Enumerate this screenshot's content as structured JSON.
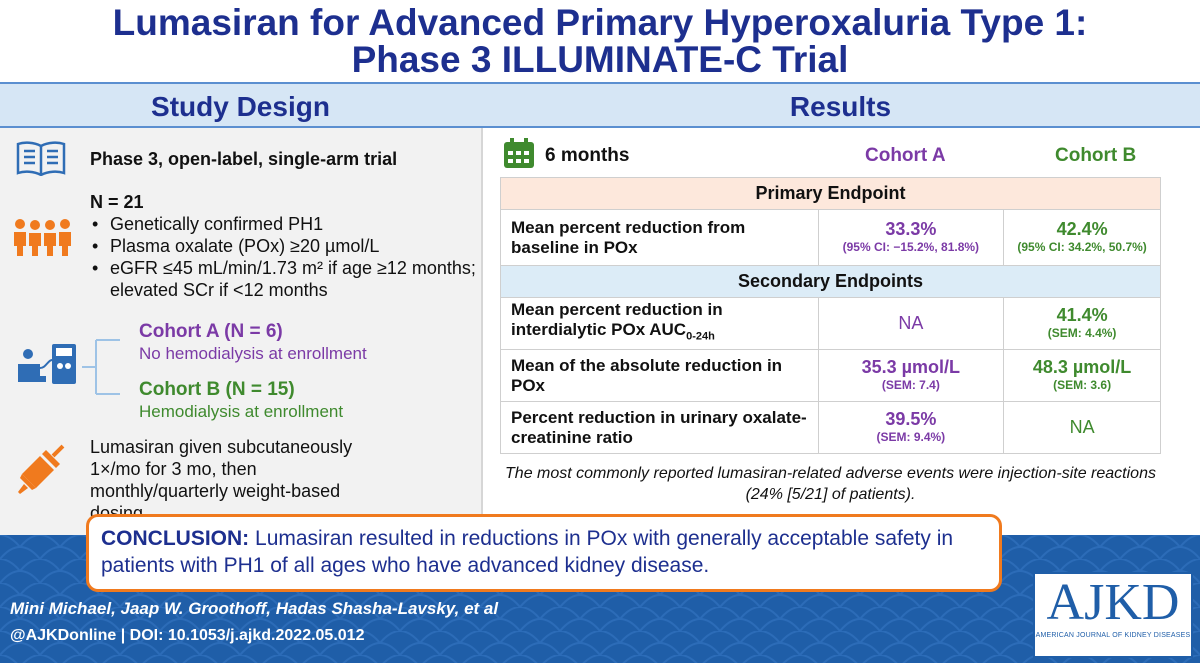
{
  "title": {
    "line1": "Lumasiran for Advanced Primary Hyperoxaluria Type 1:",
    "line2": "Phase 3 ILLUMINATE-C Trial"
  },
  "study_design": {
    "header": "Study Design",
    "trial_type": "Phase 3, open-label, single-arm trial",
    "n_label": "N = 21",
    "bullets": [
      "Genetically confirmed PH1",
      "Plasma oxalate (POx) ≥20 µmol/L",
      "eGFR ≤45 mL/min/1.73 m² if age ≥12 months; elevated SCr if <12 months"
    ],
    "cohort_a_title": "Cohort A (N = 6)",
    "cohort_a_desc": "No hemodialysis at enrollment",
    "cohort_b_title": "Cohort B (N = 15)",
    "cohort_b_desc": "Hemodialysis at enrollment",
    "dosing": "Lumasiran given subcutaneously 1×/mo for 3 mo, then monthly/quarterly weight-based dosing"
  },
  "results": {
    "header": "Results",
    "timepoint": "6 months",
    "cohort_a": "Cohort A",
    "cohort_b": "Cohort B",
    "primary_header": "Primary Endpoint",
    "secondary_header": "Secondary Endpoints",
    "rows": [
      {
        "label": "Mean percent reduction from baseline in POx",
        "a_value": "33.3%",
        "a_sub": "(95% CI: −15.2%, 81.8%)",
        "b_value": "42.4%",
        "b_sub": "(95% CI: 34.2%, 50.7%)"
      },
      {
        "label": "Mean percent reduction in interdialytic POx AUC",
        "label_sub": "0-24h",
        "a_value": "NA",
        "b_value": "41.4%",
        "b_sub": "(SEM: 4.4%)"
      },
      {
        "label": "Mean of the absolute reduction in POx",
        "a_value": "35.3 µmol/L",
        "a_sub": "(SEM: 7.4)",
        "b_value": "48.3 µmol/L",
        "b_sub": "(SEM: 3.6)"
      },
      {
        "label": "Percent reduction in urinary oxalate-creatinine ratio",
        "a_value": "39.5%",
        "a_sub": "(SEM: 9.4%)",
        "b_value": "NA"
      }
    ],
    "note": "The most commonly reported lumasiran-related adverse events were injection-site reactions (24% [5/21] of patients)."
  },
  "conclusion": {
    "label": "CONCLUSION:",
    "text": "Lumasiran resulted in reductions in POx with generally acceptable safety in patients with PH1 of all ages who have advanced kidney disease."
  },
  "footer": {
    "authors": "Mini Michael, Jaap W. Groothoff, Hadas Shasha-Lavsky, et al",
    "doi": "@AJKDonline | DOI: 10.1053/j.ajkd.2022.05.012",
    "logo_main": "AJKD",
    "logo_sub": "AMERICAN JOURNAL OF KIDNEY DISEASES"
  },
  "colors": {
    "title_blue": "#1d2f8f",
    "header_bg": "#d6e6f5",
    "cohort_a_purple": "#7b3aa6",
    "cohort_b_green": "#3f8a2e",
    "primary_bg": "#fde8dc",
    "secondary_bg": "#dcecf7",
    "conclusion_border": "#f07a1e",
    "footer_blue": "#1f5ea8"
  },
  "icons": [
    "book-icon",
    "people-icon",
    "dialysis-patient-icon",
    "syringe-icon",
    "calendar-icon"
  ]
}
